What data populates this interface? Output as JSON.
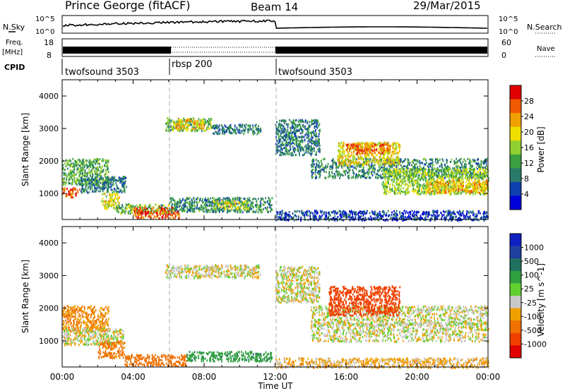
{
  "header": {
    "station": "Prince George (fitACF)",
    "beam": "Beam 14",
    "date": "29/Mar/2015"
  },
  "strips": {
    "sky_label": "N.Sky",
    "sky_top_tick": "10^5",
    "sky_bottom_tick": "10^0",
    "search_label": "N.Search",
    "search_top_tick": "10^5",
    "search_bottom_tick": "10^0",
    "freq_label_1": "Freq.",
    "freq_label_2": "[MHz]",
    "freq_top_tick": "18",
    "freq_bottom_tick": "8",
    "nave_label": "Nave",
    "nave_top_tick": "60",
    "nave_bottom_tick": "0",
    "cpid_label": "CPID",
    "cpid_segments": [
      {
        "name": "twofsound 3503",
        "start_h": 0,
        "end_h": 6
      },
      {
        "name": "rbsp 200",
        "start_h": 6,
        "end_h": 12
      },
      {
        "name": "twofsound 3503",
        "start_h": 12,
        "end_h": 24
      }
    ]
  },
  "chart_data": [
    {
      "type": "heatmap",
      "title": "",
      "quantity": "Power",
      "ylabel": "Slant Range [km]",
      "xlabel": "",
      "xlim": [
        0,
        24
      ],
      "ylim": [
        200,
        4500
      ],
      "y_ticks": [
        "1000",
        "2000",
        "3000",
        "4000"
      ],
      "colorbar_label": "Power [dB]",
      "colorbar_ticks": [
        "4",
        "8",
        "12",
        "16",
        "20",
        "24",
        "28"
      ],
      "colorbar_range": [
        0,
        32
      ],
      "colorscale": [
        "#0000d8",
        "#1040b0",
        "#2a7a6a",
        "#3aa040",
        "#90d030",
        "#f0e000",
        "#f0a000",
        "#f05a00",
        "#e00000"
      ],
      "regions": [
        {
          "t0": 0.0,
          "t1": 2.6,
          "r0": 1300,
          "r1": 2100,
          "v": 13
        },
        {
          "t0": 0.0,
          "t1": 1.0,
          "r0": 900,
          "r1": 1200,
          "v": 27
        },
        {
          "t0": 1.0,
          "t1": 3.6,
          "r0": 1050,
          "r1": 1550,
          "v": 9
        },
        {
          "t0": 2.2,
          "t1": 3.2,
          "r0": 550,
          "r1": 1050,
          "v": 18
        },
        {
          "t0": 3.0,
          "t1": 6.0,
          "r0": 400,
          "r1": 700,
          "v": 14
        },
        {
          "t0": 4.0,
          "t1": 6.6,
          "r0": 250,
          "r1": 600,
          "v": 27
        },
        {
          "t0": 5.8,
          "t1": 8.4,
          "r0": 2950,
          "r1": 3350,
          "v": 14
        },
        {
          "t0": 6.2,
          "t1": 8.0,
          "r0": 3000,
          "r1": 3300,
          "v": 21
        },
        {
          "t0": 8.4,
          "t1": 11.2,
          "r0": 2850,
          "r1": 3150,
          "v": 9
        },
        {
          "t0": 6.0,
          "t1": 11.8,
          "r0": 450,
          "r1": 900,
          "v": 10
        },
        {
          "t0": 8.5,
          "t1": 10.5,
          "r0": 550,
          "r1": 800,
          "v": 18
        },
        {
          "t0": 12.0,
          "t1": 14.5,
          "r0": 2200,
          "r1": 3300,
          "v": 9
        },
        {
          "t0": 14.0,
          "t1": 24.0,
          "r0": 1500,
          "r1": 2100,
          "v": 10
        },
        {
          "t0": 15.5,
          "t1": 19.0,
          "r0": 1900,
          "r1": 2600,
          "v": 20
        },
        {
          "t0": 16.0,
          "t1": 18.5,
          "r0": 2250,
          "r1": 2550,
          "v": 26
        },
        {
          "t0": 18.0,
          "t1": 24.0,
          "r0": 1000,
          "r1": 1800,
          "v": 16
        },
        {
          "t0": 20.5,
          "t1": 24.0,
          "r0": 1050,
          "r1": 1450,
          "v": 22
        },
        {
          "t0": 12.0,
          "t1": 24.0,
          "r0": 200,
          "r1": 500,
          "v": 5
        }
      ]
    },
    {
      "type": "heatmap",
      "title": "",
      "quantity": "Velocity",
      "ylabel": "Slant Range [km]",
      "xlabel": "Time UT",
      "xlim": [
        0,
        24
      ],
      "ylim": [
        200,
        4500
      ],
      "x_ticks": [
        "00:00",
        "04:00",
        "08:00",
        "12:00",
        "16:00",
        "20:00",
        "00:00"
      ],
      "y_ticks": [
        "1000",
        "2000",
        "3000",
        "4000"
      ],
      "colorbar_label": "Velocity [m s^-1]",
      "colorbar_ticks": [
        "1000",
        "500",
        "100",
        "25",
        "-25",
        "-100",
        "-500",
        "-1000"
      ],
      "colorscale": [
        "#1020c0",
        "#2040a0",
        "#207060",
        "#30a040",
        "#60d030",
        "#c8c8c8",
        "#f0a000",
        "#f07000",
        "#f04000",
        "#e00000"
      ],
      "regions": [
        {
          "t0": 0.0,
          "t1": 2.6,
          "r0": 1300,
          "r1": 2100,
          "v": -100
        },
        {
          "t0": 0.0,
          "t1": 3.5,
          "r0": 900,
          "r1": 1400,
          "v": 0
        },
        {
          "t0": 2.0,
          "t1": 3.5,
          "r0": 500,
          "r1": 1000,
          "v": -150
        },
        {
          "t0": 3.5,
          "t1": 7.0,
          "r0": 250,
          "r1": 600,
          "v": -180
        },
        {
          "t0": 5.8,
          "t1": 11.2,
          "r0": 2950,
          "r1": 3350,
          "v": 0
        },
        {
          "t0": 7.0,
          "t1": 11.8,
          "r0": 400,
          "r1": 700,
          "v": 200
        },
        {
          "t0": 12.0,
          "t1": 14.5,
          "r0": 2200,
          "r1": 3300,
          "v": 0
        },
        {
          "t0": 14.0,
          "t1": 24.0,
          "r0": 1500,
          "r1": 2100,
          "v": 0
        },
        {
          "t0": 15.0,
          "t1": 19.0,
          "r0": 1800,
          "r1": 2700,
          "v": -400
        },
        {
          "t0": 14.0,
          "t1": 24.0,
          "r0": 1000,
          "r1": 1600,
          "v": 0
        },
        {
          "t0": 12.0,
          "t1": 24.0,
          "r0": 200,
          "r1": 500,
          "v": -50
        }
      ]
    }
  ]
}
